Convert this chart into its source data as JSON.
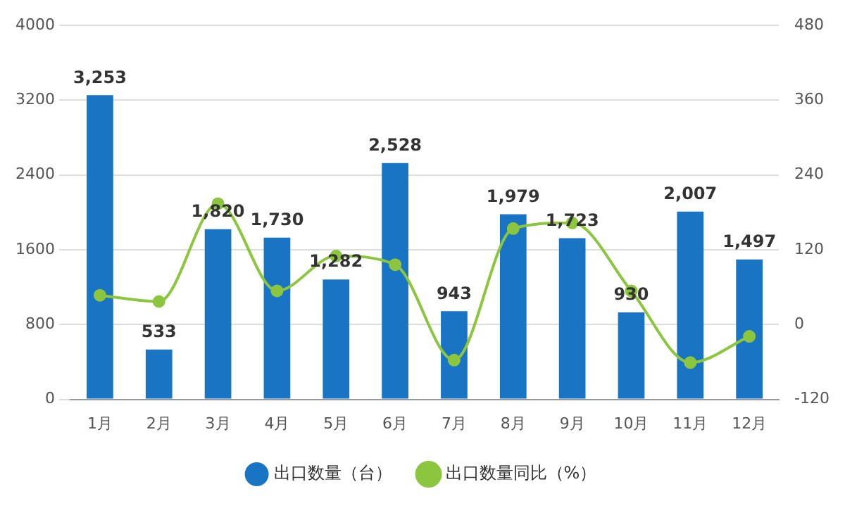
{
  "chart_data": {
    "type": "bar",
    "categories": [
      "1月",
      "2月",
      "3月",
      "4月",
      "5月",
      "6月",
      "7月",
      "8月",
      "9月",
      "10月",
      "11月",
      "12月"
    ],
    "series": [
      {
        "name": "出口数量（台）",
        "color": "#1a74c4",
        "values": [
          3253,
          533,
          1820,
          1730,
          1282,
          2528,
          943,
          1979,
          1723,
          930,
          2007,
          1497
        ],
        "value_labels": [
          "3,253",
          "533",
          "1,820",
          "1,730",
          "1,282",
          "2,528",
          "943",
          "1,979",
          "1,723",
          "930",
          "2,007",
          "1,497"
        ]
      },
      {
        "name": "出口数量同比（%）",
        "type": "line",
        "axis": "y2",
        "color": "#8cc63f",
        "values": [
          47,
          37,
          194,
          54,
          110,
          96,
          -57,
          154,
          163,
          54,
          -61,
          -19
        ]
      }
    ],
    "ylim": [
      0,
      4000
    ],
    "yticks": [
      0,
      800,
      1600,
      2400,
      3200,
      4000
    ],
    "y2lim": [
      -120,
      480
    ],
    "y2ticks": [
      -120,
      0,
      120,
      240,
      360,
      480
    ],
    "grid": "y",
    "legend": "bottom",
    "marker": "circle"
  }
}
